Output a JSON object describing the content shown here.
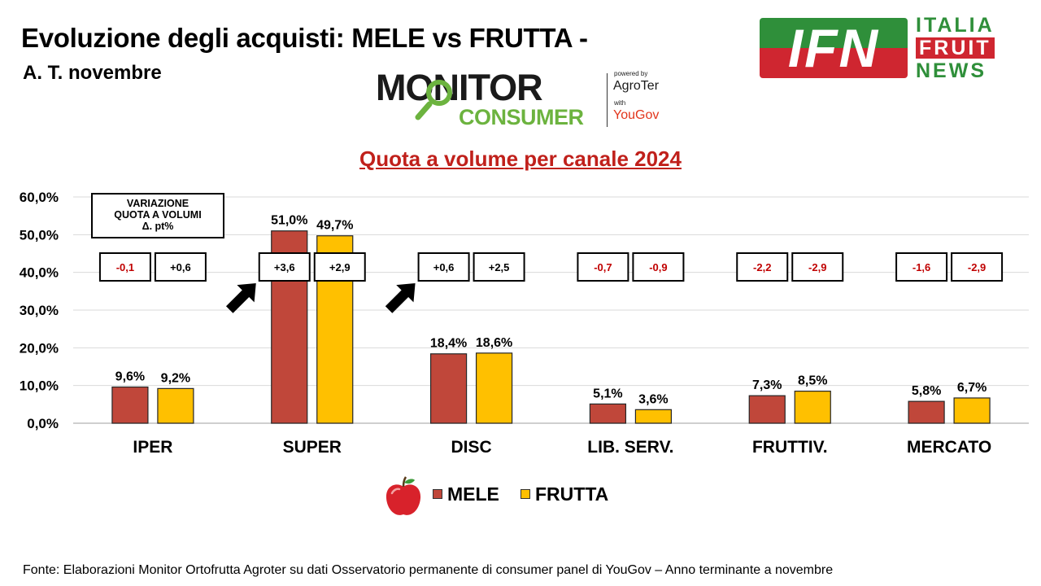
{
  "header": {
    "title": "Evoluzione degli acquisti: MELE vs FRUTTA -",
    "subtitle": "A. T. novembre"
  },
  "logo_monitor": {
    "word1": "MONITOR",
    "word2": "CONSUMER",
    "powered_by": "powered by",
    "agroter": "AgroTer",
    "with": "with",
    "yougov": "YouGov"
  },
  "logo_ifn": {
    "letters": "IFN",
    "line1": "ITALIA",
    "line2": "FRUIT",
    "line3": "NEWS"
  },
  "variation_note": {
    "line1": "VARIAZIONE",
    "line2": "QUOTA A VOLUMI",
    "line3": "Δ. pt%"
  },
  "source": "Fonte: Elaborazioni Monitor Ortofrutta Agroter su dati Osservatorio permanente di consumer panel di YouGov  – Anno terminante a novembre",
  "colors": {
    "mele": "#c0473a",
    "frutta": "#ffc000",
    "title_red": "#c0201b",
    "variation_text": "#c00000"
  },
  "chart_data": {
    "type": "bar",
    "title": "Quota a volume per canale 2024",
    "categories": [
      "IPER",
      "SUPER",
      "DISC",
      "LIB. SERV.",
      "FRUTTIV.",
      "MERCATO"
    ],
    "series": [
      {
        "name": "MELE",
        "values": [
          9.6,
          51.0,
          18.4,
          5.1,
          7.3,
          5.8
        ],
        "labels": [
          "9,6%",
          "51,0%",
          "18,4%",
          "5,1%",
          "7,3%",
          "5,8%"
        ],
        "variation": [
          "-0,1",
          "+3,6",
          "+0,6",
          "-0,7",
          "-2,2",
          "-1,6"
        ]
      },
      {
        "name": "FRUTTA",
        "values": [
          9.2,
          49.7,
          18.6,
          3.6,
          8.5,
          6.7
        ],
        "labels": [
          "9,2%",
          "49,7%",
          "18,6%",
          "3,6%",
          "8,5%",
          "6,7%"
        ],
        "variation": [
          "+0,6",
          "+2,9",
          "+2,5",
          "-0,9",
          "-2,9",
          "-2,9"
        ]
      }
    ],
    "ylim": [
      0,
      60
    ],
    "yticks": [
      0,
      10,
      20,
      30,
      40,
      50,
      60
    ],
    "ytick_labels": [
      "0,0%",
      "10,0%",
      "20,0%",
      "30,0%",
      "40,0%",
      "50,0%",
      "60,0%"
    ],
    "grid": true,
    "legend_position": "bottom",
    "highlighted_categories": [
      "SUPER",
      "DISC"
    ]
  }
}
